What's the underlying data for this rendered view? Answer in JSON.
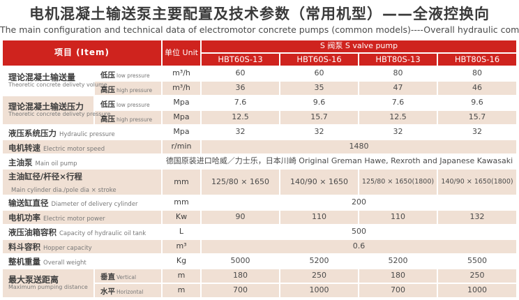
{
  "page": {
    "title_cn": "电机混凝土输送泵主要配置及技术参数（常用机型）——全液控换向",
    "title_en": "The main configuration and technical data of electromotor concrete pumps (common models)----Overall hydraulic commutation"
  },
  "colors": {
    "header_red": "#cf231e",
    "row_shade_beige": "#f0e0d4",
    "title_text": "#3a3a3a",
    "body_text": "#4a4a4a"
  },
  "table": {
    "header": {
      "item": "项目  (Item)",
      "unit": "单位 Unit",
      "pump_group": "S 阀泵  S valve pump",
      "models": [
        "HBT60S-13",
        "HBT60S-16",
        "HBT80S-13",
        "HBT80S-16"
      ]
    },
    "rows": [
      {
        "shade": "w",
        "cells": [
          {
            "k": "group",
            "cn": "理论混凝土输送量",
            "en": "Theoretic concrete delivety volume",
            "rs": 2,
            "shade": "w"
          },
          {
            "k": "sub",
            "cn": "低压",
            "en": "low pressure"
          },
          {
            "k": "unit",
            "t": "m³/h"
          },
          {
            "k": "v",
            "t": "60"
          },
          {
            "k": "v",
            "t": "60"
          },
          {
            "k": "v",
            "t": "80"
          },
          {
            "k": "v",
            "t": "80"
          }
        ]
      },
      {
        "shade": "b",
        "cells": [
          {
            "k": "sub",
            "cn": "高压",
            "en": "high pressure"
          },
          {
            "k": "unit",
            "t": "m³/h"
          },
          {
            "k": "v",
            "t": "36"
          },
          {
            "k": "v",
            "t": "35"
          },
          {
            "k": "v",
            "t": "47"
          },
          {
            "k": "v",
            "t": "46"
          }
        ]
      },
      {
        "shade": "w",
        "cells": [
          {
            "k": "group",
            "cn": "理论混凝土输送压力",
            "en": "Theoretic concrete delivety pressure",
            "rs": 2,
            "shade": "b"
          },
          {
            "k": "sub",
            "cn": "低压",
            "en": "low pressure"
          },
          {
            "k": "unit",
            "t": "Mpa"
          },
          {
            "k": "v",
            "t": "7.6"
          },
          {
            "k": "v",
            "t": "9.6"
          },
          {
            "k": "v",
            "t": "7.6"
          },
          {
            "k": "v",
            "t": "9.6"
          }
        ]
      },
      {
        "shade": "b",
        "cells": [
          {
            "k": "sub",
            "cn": "高压",
            "en": "high pressure"
          },
          {
            "k": "unit",
            "t": "Mpa"
          },
          {
            "k": "v",
            "t": "12.5"
          },
          {
            "k": "v",
            "t": "15.7"
          },
          {
            "k": "v",
            "t": "12.5"
          },
          {
            "k": "v",
            "t": "15.7"
          }
        ]
      },
      {
        "shade": "w",
        "cells": [
          {
            "k": "label",
            "cn": "液压系统压力",
            "en": "Hydraulic pressure",
            "cs": 2
          },
          {
            "k": "unit",
            "t": "Mpa"
          },
          {
            "k": "v",
            "t": "32"
          },
          {
            "k": "v",
            "t": "32"
          },
          {
            "k": "v",
            "t": "32"
          },
          {
            "k": "v",
            "t": "32"
          }
        ]
      },
      {
        "shade": "b",
        "cells": [
          {
            "k": "label",
            "cn": "电机转速",
            "en": "Electric motor speed",
            "cs": 2
          },
          {
            "k": "unit",
            "t": "r/min"
          },
          {
            "k": "v",
            "t": "1480",
            "cs": 4
          }
        ]
      },
      {
        "shade": "w",
        "cells": [
          {
            "k": "label",
            "cn": "主油泵",
            "en": "Main oil pump",
            "cs": 2
          },
          {
            "k": "v",
            "t": "德国原装进口哈威／力士乐，日本川崎  Original  Greman Hawe, Rexroth and Japanese Kawasaki",
            "cs": 5
          }
        ]
      },
      {
        "shade": "b",
        "cells": [
          {
            "k": "label",
            "cn": "主油缸径/杆径×行程",
            "en": "Main cylinder dia./pole dia × stroke",
            "cs": 2
          },
          {
            "k": "unit",
            "t": "mm"
          },
          {
            "k": "v",
            "t": "125/80 × 1650"
          },
          {
            "k": "v",
            "t": "140/90 × 1650"
          },
          {
            "k": "v",
            "t": "125/80 × 1650(1800)"
          },
          {
            "k": "v",
            "t": "140/90 × 1650(1800)"
          }
        ]
      },
      {
        "shade": "w",
        "cells": [
          {
            "k": "label",
            "cn": "输送缸直径",
            "en": "Diameter of delivery cylinder",
            "cs": 2
          },
          {
            "k": "unit",
            "t": "mm"
          },
          {
            "k": "v",
            "t": "200",
            "cs": 4
          }
        ]
      },
      {
        "shade": "b",
        "cells": [
          {
            "k": "label",
            "cn": "电机功率",
            "en": "Electric motor power",
            "cs": 2
          },
          {
            "k": "unit",
            "t": "Kw"
          },
          {
            "k": "v",
            "t": "90"
          },
          {
            "k": "v",
            "t": "110"
          },
          {
            "k": "v",
            "t": "110"
          },
          {
            "k": "v",
            "t": "132"
          }
        ]
      },
      {
        "shade": "w",
        "cells": [
          {
            "k": "label",
            "cn": "液压油箱容积",
            "en": "Capacity of hydraulic oil tank",
            "cs": 2
          },
          {
            "k": "unit",
            "t": "L"
          },
          {
            "k": "v",
            "t": "500",
            "cs": 4
          }
        ]
      },
      {
        "shade": "b",
        "cells": [
          {
            "k": "label",
            "cn": "料斗容积",
            "en": "Hopper capacity",
            "cs": 2
          },
          {
            "k": "unit",
            "t": "m³"
          },
          {
            "k": "v",
            "t": "0.6",
            "cs": 4
          }
        ]
      },
      {
        "shade": "w",
        "cells": [
          {
            "k": "label",
            "cn": "整机重量",
            "en": "Overall weight",
            "cs": 2
          },
          {
            "k": "unit",
            "t": "Kg"
          },
          {
            "k": "v",
            "t": "5000"
          },
          {
            "k": "v",
            "t": "5200"
          },
          {
            "k": "v",
            "t": "5200"
          },
          {
            "k": "v",
            "t": "5500"
          }
        ]
      },
      {
        "shade": "b",
        "cells": [
          {
            "k": "group",
            "cn": "最大泵送距离",
            "en": "Maximum pumping distance",
            "rs": 2,
            "shade": "b"
          },
          {
            "k": "sub",
            "cn": "垂直",
            "en": "Vertical"
          },
          {
            "k": "unit",
            "t": "m"
          },
          {
            "k": "v",
            "t": "180"
          },
          {
            "k": "v",
            "t": "250"
          },
          {
            "k": "v",
            "t": "180"
          },
          {
            "k": "v",
            "t": "250"
          }
        ]
      },
      {
        "shade": "b",
        "cells": [
          {
            "k": "sub",
            "cn": "水平",
            "en": "Horizontal"
          },
          {
            "k": "unit",
            "t": "m"
          },
          {
            "k": "v",
            "t": "700"
          },
          {
            "k": "v",
            "t": "1000"
          },
          {
            "k": "v",
            "t": "700"
          },
          {
            "k": "v",
            "t": "1000"
          }
        ]
      }
    ]
  }
}
